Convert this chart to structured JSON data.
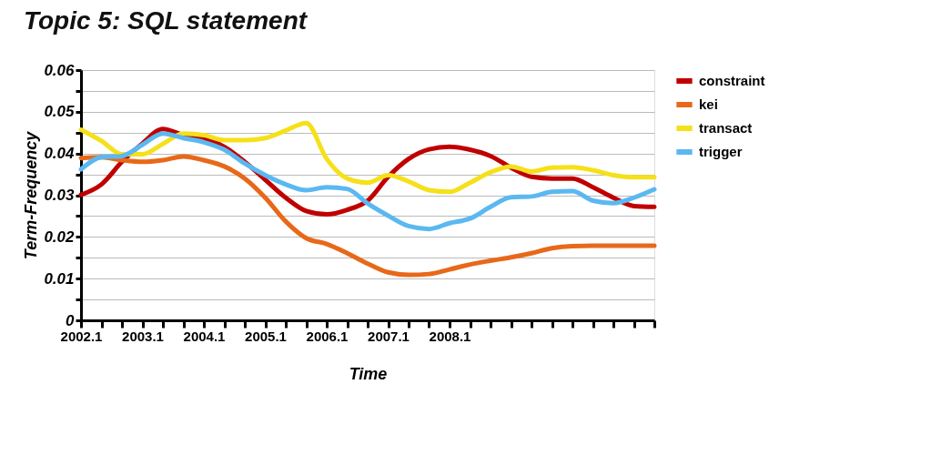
{
  "chart_data": {
    "type": "line",
    "title": "Topic 5: SQL statement",
    "xlabel": "Time",
    "ylabel": "Term-Frequency",
    "categories": [
      "2002.1",
      null,
      null,
      "2003.1",
      null,
      null,
      "2004.1",
      null,
      null,
      "2005.1",
      null,
      null,
      "2006.1",
      null,
      null,
      "2007.1",
      null,
      null,
      "2008.1",
      null,
      null,
      null,
      null,
      null,
      null,
      null,
      null,
      null,
      null
    ],
    "ylim": [
      0,
      0.06
    ],
    "yticks": [
      0,
      {
        "value": 0.005,
        "label": null
      },
      0.01,
      {
        "value": 0.015,
        "label": null
      },
      0.02,
      {
        "value": 0.025,
        "label": null
      },
      0.03,
      {
        "value": 0.035,
        "label": null
      },
      0.04,
      {
        "value": 0.045,
        "label": null
      },
      0.05,
      {
        "value": 0.055,
        "label": null
      },
      0.06
    ],
    "grid": "y",
    "legend": "right",
    "line_style": "solid",
    "marker": "none",
    "series": [
      {
        "name": "constraint",
        "color": "#c00000",
        "values": [
          0.0301,
          0.0326,
          0.038,
          0.0424,
          0.0459,
          0.0444,
          0.0436,
          0.0416,
          0.038,
          0.0337,
          0.0294,
          0.0262,
          0.0254,
          0.0265,
          0.0287,
          0.0344,
          0.0387,
          0.041,
          0.0416,
          0.0409,
          0.0394,
          0.0366,
          0.0344,
          0.034,
          0.034,
          0.0319,
          0.0294,
          0.0274,
          0.0272
        ]
      },
      {
        "name": "kei",
        "color": "#e8681a",
        "values": [
          0.0389,
          0.0391,
          0.0384,
          0.038,
          0.0384,
          0.0393,
          0.0384,
          0.0369,
          0.034,
          0.0294,
          0.0237,
          0.0197,
          0.0183,
          0.0161,
          0.0136,
          0.0115,
          0.0109,
          0.0111,
          0.0122,
          0.0134,
          0.0143,
          0.0151,
          0.0161,
          0.0173,
          0.0178,
          0.0179,
          0.0179,
          0.0179,
          0.0179
        ]
      },
      {
        "name": "transact",
        "color": "#f5e01a",
        "values": [
          0.0457,
          0.043,
          0.0398,
          0.0398,
          0.0423,
          0.0448,
          0.0444,
          0.0432,
          0.0432,
          0.0437,
          0.0455,
          0.0473,
          0.0387,
          0.034,
          0.033,
          0.0348,
          0.0333,
          0.0312,
          0.0308,
          0.033,
          0.0355,
          0.0369,
          0.0357,
          0.0366,
          0.0367,
          0.036,
          0.0348,
          0.0343,
          0.0343
        ]
      },
      {
        "name": "trigger",
        "color": "#5bb8f0",
        "values": [
          0.0362,
          0.0391,
          0.0394,
          0.0421,
          0.0448,
          0.0437,
          0.0427,
          0.0409,
          0.0376,
          0.0348,
          0.0326,
          0.0312,
          0.0319,
          0.0315,
          0.028,
          0.0251,
          0.0226,
          0.0219,
          0.0233,
          0.0244,
          0.0272,
          0.0295,
          0.0297,
          0.0308,
          0.031,
          0.0287,
          0.0281,
          0.0294,
          0.0314
        ]
      }
    ]
  }
}
